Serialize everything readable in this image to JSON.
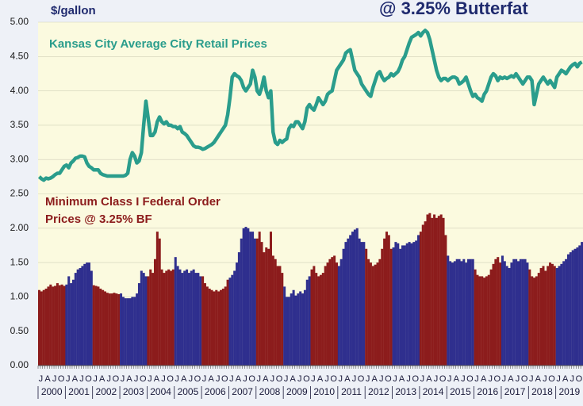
{
  "chart_data": {
    "type": "bar_line",
    "title": "@ 3.25% Butterfat",
    "y_label": "$/gallon",
    "annotations": [
      "Kansas City Average City Retail Prices",
      "Minimum Class I Federal Order",
      "Prices @ 3.25% BF"
    ],
    "categories": [
      "J",
      null,
      null,
      "A",
      null,
      null,
      "J",
      null,
      null,
      "O",
      null,
      null,
      "J",
      null,
      null,
      "A",
      null,
      null,
      "J",
      null,
      null,
      "O",
      null,
      null,
      "J",
      null,
      null,
      "A",
      null,
      null,
      "J",
      null,
      null,
      "O",
      null,
      null,
      "J",
      null,
      null,
      "A",
      null,
      null,
      "J",
      null,
      null,
      "O",
      null,
      null,
      "J",
      null,
      null,
      "A",
      null,
      null,
      "J",
      null,
      null,
      "O",
      null,
      null,
      "J",
      null,
      null,
      "A",
      null,
      null,
      "J",
      null,
      null,
      "O",
      null,
      null,
      "J",
      null,
      null,
      "A",
      null,
      null,
      "J",
      null,
      null,
      "O",
      null,
      null,
      "J",
      null,
      null,
      "A",
      null,
      null,
      "J",
      null,
      null,
      "O",
      null,
      null,
      "J",
      null,
      null,
      "A",
      null,
      null,
      "J",
      null,
      null,
      "O",
      null,
      null,
      "J",
      null,
      null,
      "A",
      null,
      null,
      "J",
      null,
      null,
      "O",
      null,
      null,
      "J",
      null,
      null,
      "A",
      null,
      null,
      "J",
      null,
      null,
      "O",
      null,
      null,
      "J",
      null,
      null,
      "A",
      null,
      null,
      "J",
      null,
      null,
      "O",
      null,
      null,
      "J",
      null,
      null,
      "A",
      null,
      null,
      "J",
      null,
      null,
      "O",
      null,
      null,
      "J",
      null,
      null,
      "A",
      null,
      null,
      "J",
      null,
      null,
      "O",
      null,
      null,
      "J",
      null,
      null,
      "A",
      null,
      null,
      "J",
      null,
      null,
      "O",
      null,
      null,
      "J",
      null,
      null,
      "A",
      null,
      null,
      "J",
      null,
      null,
      "O",
      null,
      null,
      "J",
      null,
      null,
      "A",
      null,
      null,
      "J",
      null,
      null,
      "O",
      null,
      null,
      "J",
      null,
      null,
      "A",
      null,
      null,
      "J",
      null,
      null,
      "O",
      null,
      null,
      "J",
      null,
      null,
      "A",
      null,
      null,
      "J",
      null,
      null,
      "O",
      null,
      null,
      "J",
      null,
      null,
      "A",
      null,
      null,
      "J",
      null,
      null,
      "O",
      null,
      null
    ],
    "years": [
      "2000",
      "2001",
      "2002",
      "2003",
      "2004",
      "2005",
      "2006",
      "2007",
      "2008",
      "2009",
      "2010",
      "2011",
      "2012",
      "2013",
      "2014",
      "2015",
      "2016",
      "2017",
      "2018",
      "2019"
    ],
    "ylim": [
      0,
      5
    ],
    "yticks": [
      {
        "value": 0,
        "label": "0.00"
      },
      {
        "value": 0.5,
        "label": "0.50"
      },
      {
        "value": 1,
        "label": "1.00"
      },
      {
        "value": 1.5,
        "label": "1.50"
      },
      {
        "value": 2,
        "label": "2.00"
      },
      {
        "value": 2.5,
        "label": "2.50"
      },
      {
        "value": 3,
        "label": "3.00"
      },
      {
        "value": 3.5,
        "label": "3.50"
      },
      {
        "value": 4,
        "label": "4.00"
      },
      {
        "value": 4.5,
        "label": "4.50"
      },
      {
        "value": 5,
        "label": "5.00"
      }
    ],
    "series": [
      {
        "name": "Minimum Class I Federal Order Prices @ 3.25% BF",
        "kind": "bar",
        "colors": [
          "#8c1c1c",
          "#2f2f8e"
        ],
        "values": [
          1.1,
          1.08,
          1.1,
          1.12,
          1.15,
          1.18,
          1.15,
          1.16,
          1.2,
          1.17,
          1.18,
          1.16,
          1.18,
          1.3,
          1.2,
          1.25,
          1.35,
          1.4,
          1.42,
          1.45,
          1.48,
          1.5,
          1.5,
          1.38,
          1.17,
          1.16,
          1.15,
          1.12,
          1.1,
          1.08,
          1.06,
          1.05,
          1.05,
          1.06,
          1.05,
          1.04,
          1.05,
          1.0,
          0.98,
          0.98,
          0.98,
          1.0,
          1.0,
          1.05,
          1.2,
          1.38,
          1.35,
          1.3,
          1.3,
          1.4,
          1.35,
          1.55,
          1.95,
          1.85,
          1.4,
          1.35,
          1.38,
          1.4,
          1.38,
          1.4,
          1.58,
          1.45,
          1.4,
          1.35,
          1.38,
          1.4,
          1.35,
          1.38,
          1.4,
          1.35,
          1.35,
          1.3,
          1.3,
          1.2,
          1.15,
          1.12,
          1.1,
          1.08,
          1.1,
          1.08,
          1.1,
          1.12,
          1.15,
          1.25,
          1.28,
          1.32,
          1.38,
          1.5,
          1.65,
          1.85,
          2.0,
          2.02,
          2.0,
          1.95,
          1.95,
          1.85,
          1.85,
          1.95,
          1.8,
          1.65,
          1.72,
          1.7,
          1.95,
          1.6,
          1.55,
          1.45,
          1.45,
          1.35,
          1.15,
          1.0,
          1.0,
          1.05,
          1.1,
          1.02,
          1.05,
          1.08,
          1.05,
          1.1,
          1.25,
          1.3,
          1.4,
          1.45,
          1.35,
          1.3,
          1.32,
          1.35,
          1.45,
          1.5,
          1.55,
          1.58,
          1.6,
          1.5,
          1.45,
          1.55,
          1.7,
          1.8,
          1.85,
          1.9,
          1.95,
          1.98,
          2.0,
          1.85,
          1.8,
          1.8,
          1.7,
          1.55,
          1.5,
          1.45,
          1.47,
          1.5,
          1.55,
          1.7,
          1.85,
          1.95,
          1.9,
          1.7,
          1.72,
          1.8,
          1.78,
          1.7,
          1.75,
          1.75,
          1.78,
          1.8,
          1.78,
          1.8,
          1.82,
          1.9,
          1.95,
          2.05,
          2.1,
          2.2,
          2.22,
          2.15,
          2.2,
          2.15,
          2.18,
          2.2,
          2.15,
          1.9,
          1.6,
          1.52,
          1.5,
          1.52,
          1.55,
          1.55,
          1.52,
          1.55,
          1.5,
          1.55,
          1.55,
          1.55,
          1.4,
          1.32,
          1.3,
          1.3,
          1.28,
          1.3,
          1.32,
          1.4,
          1.48,
          1.55,
          1.58,
          1.5,
          1.6,
          1.52,
          1.45,
          1.42,
          1.5,
          1.55,
          1.55,
          1.52,
          1.55,
          1.55,
          1.55,
          1.5,
          1.4,
          1.3,
          1.28,
          1.3,
          1.35,
          1.42,
          1.45,
          1.38,
          1.45,
          1.5,
          1.48,
          1.45,
          1.42,
          1.45,
          1.48,
          1.52,
          1.55,
          1.62,
          1.65,
          1.68,
          1.7,
          1.72,
          1.75,
          1.8
        ]
      },
      {
        "name": "Kansas City Average City Retail Prices",
        "kind": "line",
        "color": "#2a9d8c",
        "values": [
          2.75,
          2.72,
          2.7,
          2.73,
          2.72,
          2.73,
          2.75,
          2.78,
          2.8,
          2.8,
          2.85,
          2.9,
          2.92,
          2.88,
          2.95,
          2.98,
          3.02,
          3.03,
          3.05,
          3.05,
          3.04,
          2.95,
          2.9,
          2.88,
          2.85,
          2.85,
          2.85,
          2.8,
          2.78,
          2.77,
          2.76,
          2.76,
          2.76,
          2.76,
          2.76,
          2.76,
          2.76,
          2.76,
          2.77,
          2.8,
          3.0,
          3.1,
          3.05,
          2.95,
          2.98,
          3.1,
          3.5,
          3.85,
          3.6,
          3.35,
          3.35,
          3.4,
          3.55,
          3.62,
          3.55,
          3.52,
          3.55,
          3.5,
          3.5,
          3.48,
          3.48,
          3.45,
          3.48,
          3.4,
          3.38,
          3.35,
          3.3,
          3.25,
          3.2,
          3.18,
          3.18,
          3.17,
          3.15,
          3.16,
          3.18,
          3.2,
          3.22,
          3.25,
          3.3,
          3.35,
          3.4,
          3.45,
          3.5,
          3.65,
          3.9,
          4.2,
          4.25,
          4.22,
          4.2,
          4.15,
          4.05,
          4.0,
          4.05,
          4.1,
          4.3,
          4.2,
          4.0,
          3.95,
          4.05,
          4.2,
          4.0,
          3.9,
          4.0,
          3.4,
          3.25,
          3.22,
          3.28,
          3.25,
          3.28,
          3.3,
          3.45,
          3.5,
          3.48,
          3.55,
          3.55,
          3.5,
          3.45,
          3.55,
          3.75,
          3.8,
          3.75,
          3.72,
          3.8,
          3.9,
          3.85,
          3.8,
          3.85,
          3.95,
          3.98,
          4.0,
          4.15,
          4.3,
          4.35,
          4.4,
          4.45,
          4.55,
          4.58,
          4.6,
          4.45,
          4.3,
          4.25,
          4.2,
          4.1,
          4.05,
          4.0,
          3.95,
          3.92,
          4.05,
          4.15,
          4.25,
          4.28,
          4.2,
          4.15,
          4.18,
          4.2,
          4.25,
          4.22,
          4.25,
          4.28,
          4.35,
          4.45,
          4.5,
          4.6,
          4.7,
          4.78,
          4.8,
          4.82,
          4.85,
          4.8,
          4.85,
          4.88,
          4.85,
          4.75,
          4.6,
          4.45,
          4.3,
          4.2,
          4.15,
          4.18,
          4.18,
          4.15,
          4.18,
          4.2,
          4.2,
          4.18,
          4.1,
          4.12,
          4.15,
          4.2,
          4.1,
          4.0,
          3.92,
          3.95,
          3.9,
          3.88,
          3.85,
          3.95,
          4.0,
          4.1,
          4.2,
          4.25,
          4.22,
          4.15,
          4.2,
          4.18,
          4.2,
          4.18,
          4.2,
          4.22,
          4.2,
          4.25,
          4.2,
          4.15,
          4.1,
          4.15,
          4.2,
          4.2,
          4.15,
          3.8,
          3.95,
          4.1,
          4.15,
          4.2,
          4.15,
          4.1,
          4.15,
          4.1,
          4.05,
          4.2,
          4.25,
          4.3,
          4.28,
          4.25,
          4.3,
          4.35,
          4.38,
          4.4,
          4.35,
          4.4,
          4.42
        ]
      }
    ],
    "plot_background": "#fbfadf"
  }
}
